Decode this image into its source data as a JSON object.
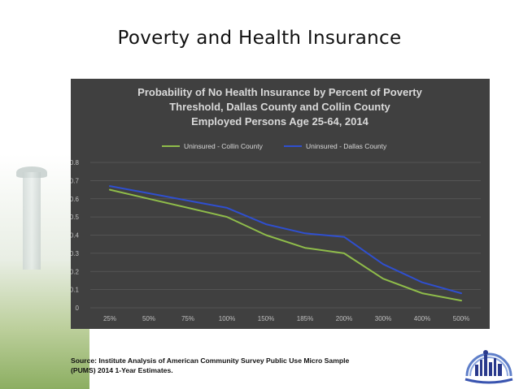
{
  "page": {
    "title": "Poverty and Health Insurance",
    "source": "Source: Institute Analysis of American Community Survey Public Use Micro Sample (PUMS) 2014 1-Year Estimates."
  },
  "chart_data": {
    "type": "line",
    "title_lines": [
      "Probability of No Health Insurance by Percent of Poverty",
      "Threshold, Dallas County and Collin County",
      "Employed Persons Age 25-64, 2014"
    ],
    "xlabel": "",
    "ylabel": "",
    "categories": [
      "25%",
      "50%",
      "75%",
      "100%",
      "150%",
      "185%",
      "200%",
      "300%",
      "400%",
      "500%"
    ],
    "y_ticks": [
      "0",
      "0.1",
      "0.2",
      "0.3",
      "0.4",
      "0.5",
      "0.6",
      "0.7",
      "0.8"
    ],
    "ylim": [
      0,
      0.8
    ],
    "grid": "horizontal",
    "legend_position": "top",
    "series": [
      {
        "name": "Uninsured - Collin County",
        "color": "#8fbc4a",
        "values": [
          0.65,
          0.6,
          0.55,
          0.5,
          0.4,
          0.33,
          0.3,
          0.16,
          0.08,
          0.04
        ]
      },
      {
        "name": "Uninsured - Dallas County",
        "color": "#2f4fcf",
        "values": [
          0.67,
          0.63,
          0.59,
          0.55,
          0.46,
          0.41,
          0.39,
          0.24,
          0.14,
          0.08
        ]
      }
    ]
  }
}
